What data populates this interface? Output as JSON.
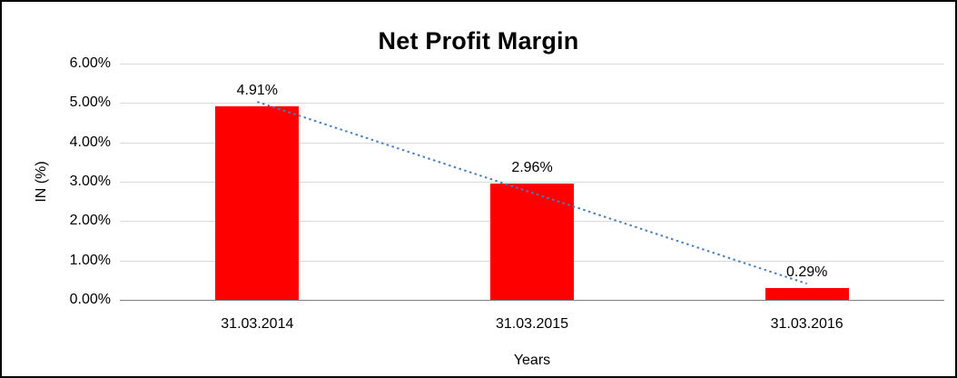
{
  "chart_data": {
    "type": "bar",
    "title": "Net Profit Margin",
    "xlabel": "Years",
    "ylabel": "IN (%)",
    "categories": [
      "31.03.2014",
      "31.03.2015",
      "31.03.2016"
    ],
    "values": [
      4.91,
      2.96,
      0.29
    ],
    "data_labels": [
      "4.91%",
      "2.96%",
      "0.29%"
    ],
    "ylim": [
      0,
      6
    ],
    "ytick_step": 1,
    "ytick_labels": [
      "0.00%",
      "1.00%",
      "2.00%",
      "3.00%",
      "4.00%",
      "5.00%",
      "6.00%"
    ],
    "grid": true,
    "legend": false,
    "bar_color": "#ff0000",
    "trendline": {
      "type": "linear",
      "color": "#4a7ebb",
      "style": "dotted"
    }
  }
}
